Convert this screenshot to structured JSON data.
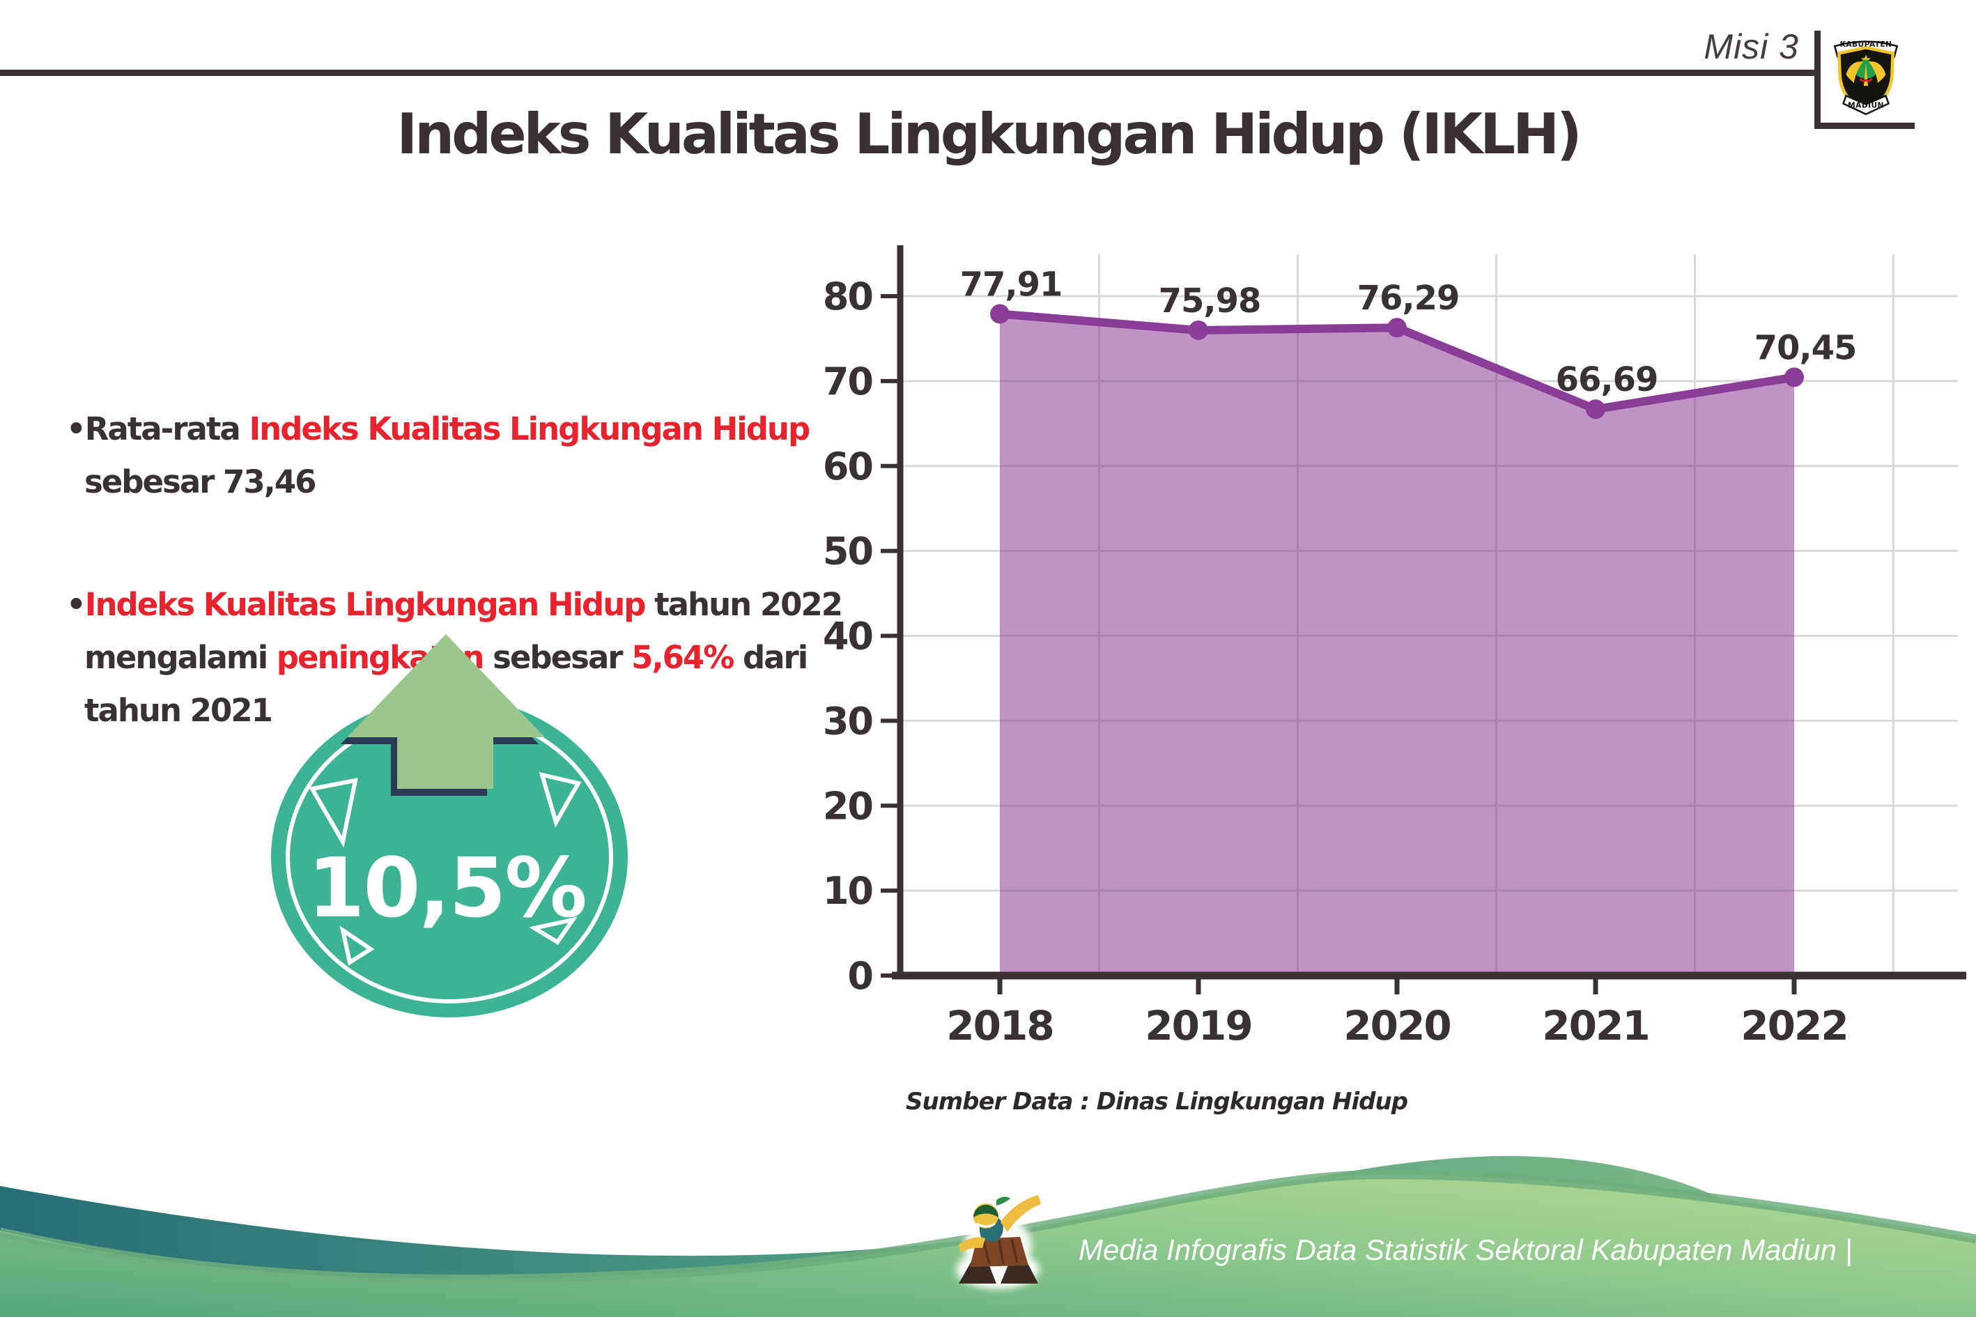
{
  "colors": {
    "dark": "#3a3132",
    "red": "#e8232e",
    "white": "#ffffff"
  },
  "header": {
    "misi_label": "Misi 3",
    "title": "Indeks Kualitas Lingkungan Hidup (IKLH)",
    "logo": {
      "top_text": "KABUPATEN",
      "bottom_text": "MADIUN"
    }
  },
  "left_panel": {
    "bullets": [
      {
        "lines": [
          {
            "segments": [
              {
                "text": "•Rata-rata ",
                "color": "dark"
              },
              {
                "text": "Indeks Kualitas Lingkungan Hidup",
                "color": "red"
              }
            ]
          },
          {
            "segments": [
              {
                "text": "sebesar 73,46",
                "color": "dark"
              }
            ]
          }
        ]
      },
      {
        "lines": [
          {
            "segments": [
              {
                "text": "•",
                "color": "dark"
              },
              {
                "text": "Indeks Kualitas Lingkungan Hidup",
                "color": "red"
              },
              {
                "text": " tahun 2022",
                "color": "dark"
              }
            ]
          },
          {
            "segments": [
              {
                "text": "mengalami ",
                "color": "dark"
              },
              {
                "text": "peningkatan",
                "color": "red"
              },
              {
                "text": " sebesar ",
                "color": "dark"
              },
              {
                "text": "5,64%",
                "color": "red"
              },
              {
                "text": " dari",
                "color": "dark"
              }
            ]
          },
          {
            "segments": [
              {
                "text": "tahun 2021",
                "color": "dark"
              }
            ]
          }
        ]
      }
    ],
    "badge": {
      "value": "10,5%",
      "circle_color": "#3bb394",
      "arrow_color": "#9cc48d",
      "arrow_outline": "#2b3a55"
    }
  },
  "chart_data": {
    "type": "area",
    "title": "",
    "xlabel": "",
    "ylabel": "",
    "categories": [
      "2018",
      "2019",
      "2020",
      "2021",
      "2022"
    ],
    "values": [
      77.91,
      75.98,
      76.29,
      66.69,
      70.45
    ],
    "point_labels": [
      "77,91",
      "75,98",
      "76,29",
      "66,69",
      "70,45"
    ],
    "ylim": [
      0,
      80
    ],
    "yticks": [
      0,
      10,
      20,
      30,
      40,
      50,
      60,
      70,
      80
    ],
    "grid": true,
    "legend": false,
    "line_color": "#8a3d96",
    "fill_color": "rgba(138,61,150,0.55)",
    "axis_color": "#3a3132",
    "grid_color": "#d9d9d9",
    "source": "Sumber Data : Dinas Lingkungan Hidup"
  },
  "footer": {
    "text": "Media Infografis Data Statistik Sektoral Kabupaten Madiun |"
  }
}
